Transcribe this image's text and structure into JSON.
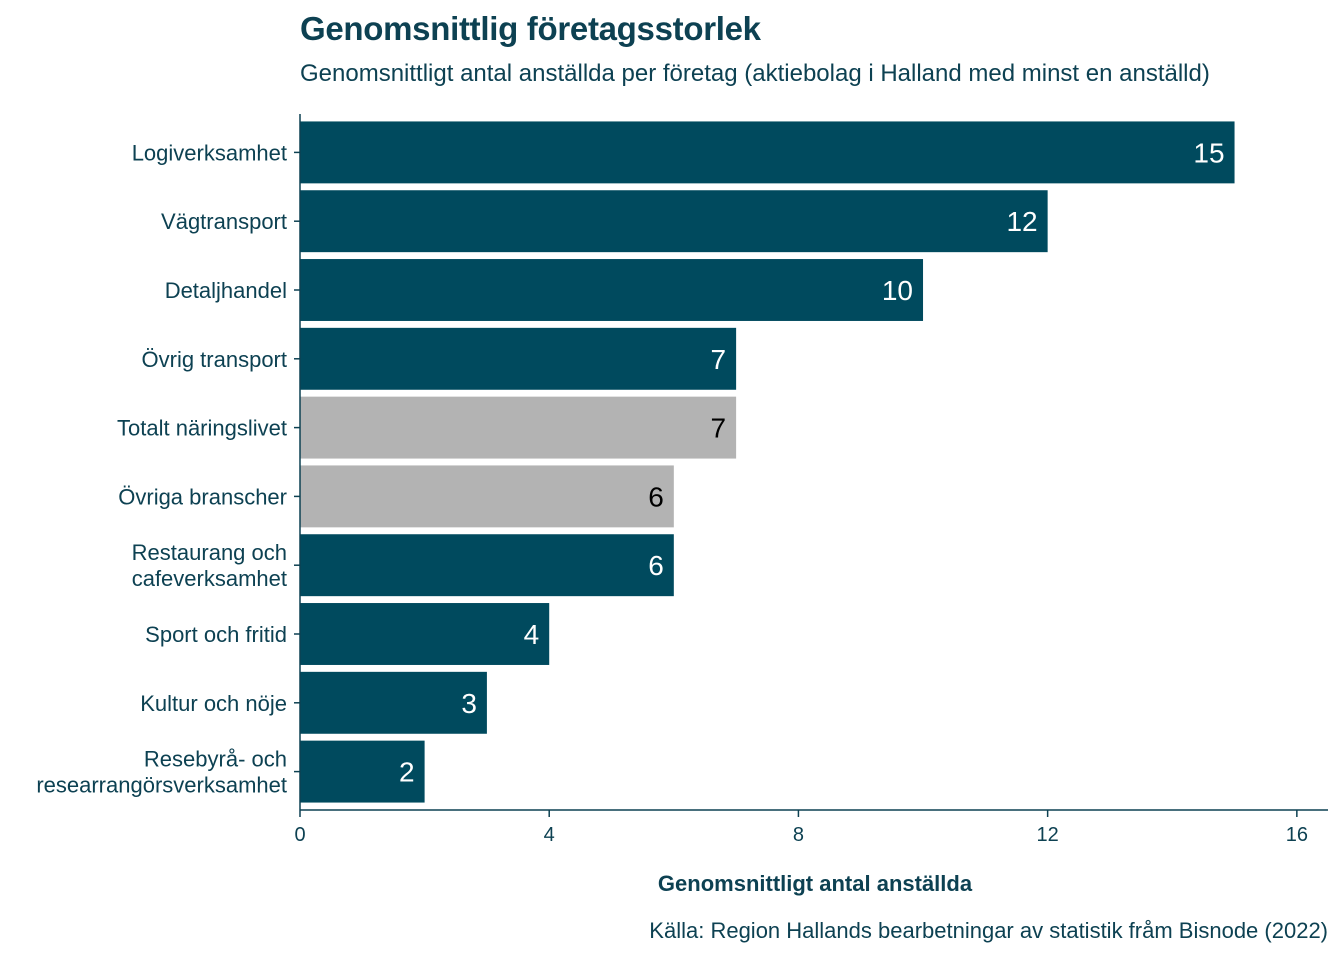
{
  "chart_data": {
    "type": "bar",
    "orientation": "horizontal",
    "title": "Genomsnittlig företagsstorlek",
    "subtitle": "Genomsnittligt antal anställda per företag (aktiebolag i Halland med minst en anställd)",
    "xlabel": "Genomsnittligt antal anställda",
    "ylabel": "",
    "source": "Källa: Region Hallands bearbetningar av statistik fråm Bisnode (2022)",
    "xlim": [
      0,
      16.5
    ],
    "xticks": [
      "0",
      "4",
      "8",
      "12",
      "16"
    ],
    "xtick_values": [
      0,
      4,
      8,
      12,
      16
    ],
    "grid": false,
    "categories": [
      [
        "Logiverksamhet"
      ],
      [
        "Vägtransport"
      ],
      [
        "Detaljhandel"
      ],
      [
        "Övrig transport"
      ],
      [
        "Totalt näringslivet"
      ],
      [
        "Övriga branscher"
      ],
      [
        "Restaurang och",
        "cafeverksamhet"
      ],
      [
        "Sport och fritid"
      ],
      [
        "Kultur och nöje"
      ],
      [
        "Resebyrå- och",
        "researrangörsverksamhet"
      ]
    ],
    "values": [
      15,
      12,
      10,
      7,
      7,
      6,
      6,
      4,
      3,
      2
    ],
    "bar_colors": [
      "#004a5e",
      "#004a5e",
      "#004a5e",
      "#004a5e",
      "#b3b3b3",
      "#b3b3b3",
      "#004a5e",
      "#004a5e",
      "#004a5e",
      "#004a5e"
    ],
    "label_colors": [
      "#ffffff",
      "#ffffff",
      "#ffffff",
      "#ffffff",
      "#000000",
      "#000000",
      "#ffffff",
      "#ffffff",
      "#ffffff",
      "#ffffff"
    ]
  }
}
